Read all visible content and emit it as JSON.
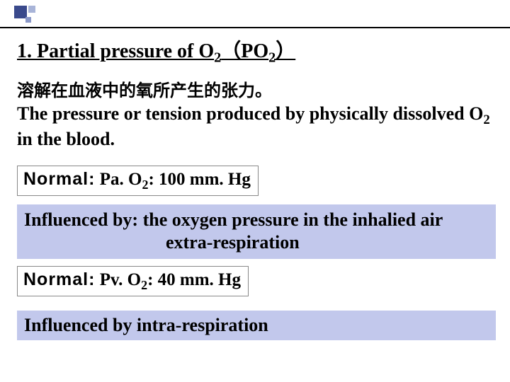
{
  "colors": {
    "corner_dark": "#3a4a8c",
    "corner_light1": "#a8b4d8",
    "corner_light2": "#8a98c8",
    "box_bg": "#c2c8ec",
    "line": "#000000",
    "page_bg": "#ffffff"
  },
  "heading": {
    "prefix": "1. Partial pressure of O",
    "sub1": "2",
    "paren_open": "（PO",
    "sub2": "2",
    "paren_close": "）"
  },
  "chinese_def": "溶解在血液中的氧所产生的张力。",
  "definition": {
    "part1": "The pressure or tension produced by physically dissolved ",
    "o": "O",
    "sub": "2",
    "part2": " in the blood."
  },
  "normal1": {
    "label": "Normal:",
    "value_pre": "  Pa. O",
    "value_sub": "2",
    "value_post": ": 100 mm. Hg"
  },
  "influenced1": {
    "lead": "Influenced by: ",
    "line1_rest": "the oxygen pressure in the inhalied air",
    "line2": "extra-respiration"
  },
  "normal2": {
    "label": "Normal:",
    "value_pre": "  Pv. O",
    "value_sub": "2",
    "value_post": ": 40 mm. Hg"
  },
  "influenced2": "Influenced by  intra-respiration"
}
